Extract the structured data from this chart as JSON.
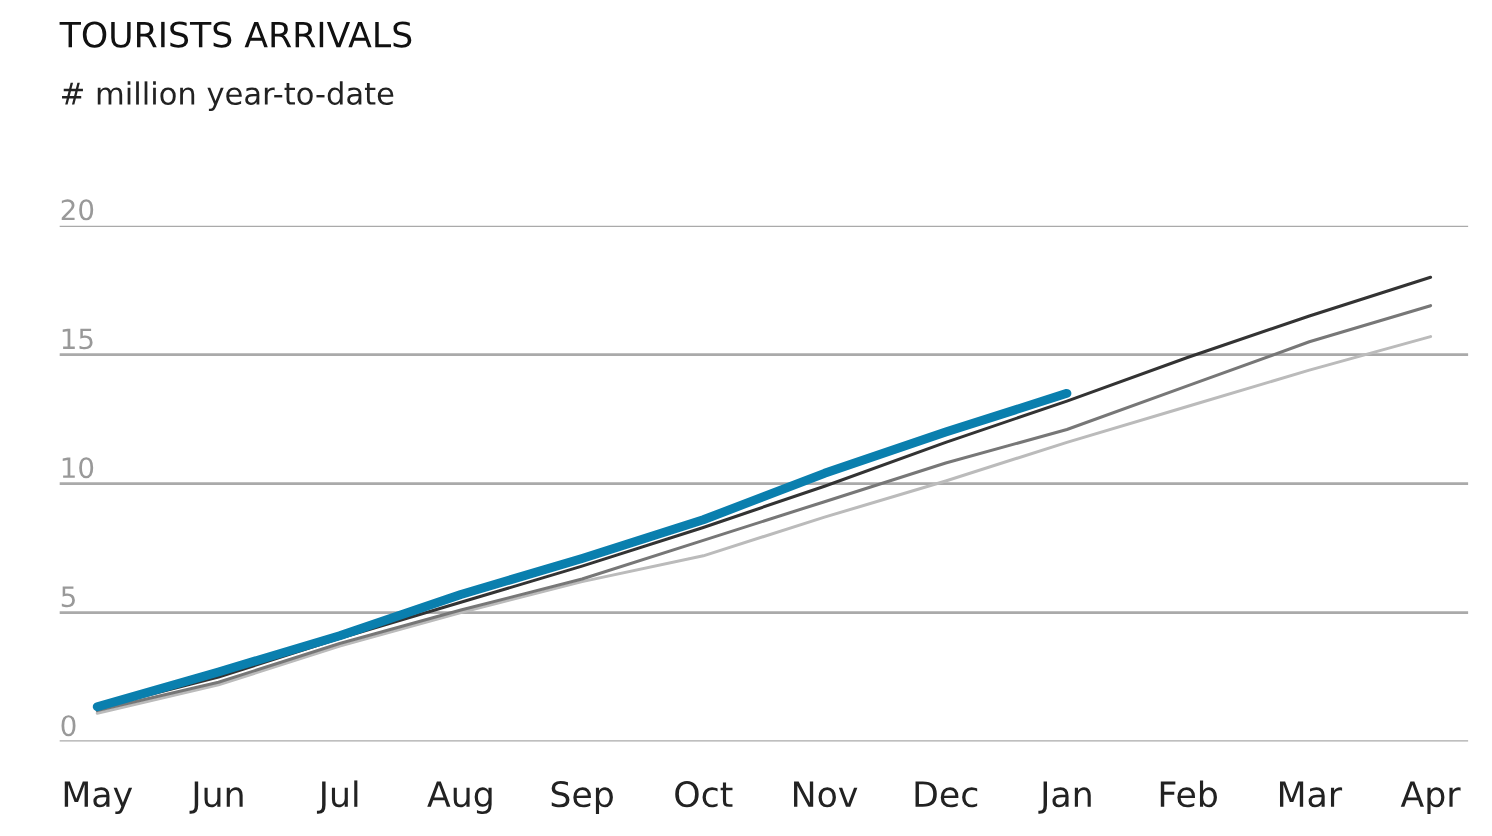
{
  "chart_data": {
    "type": "line",
    "title": "TOURISTS ARRIVALS",
    "subtitle": "# million year-to-date",
    "categories": [
      "May",
      "Jun",
      "Jul",
      "Aug",
      "Sep",
      "Oct",
      "Nov",
      "Dec",
      "Jan",
      "Feb",
      "Mar",
      "Apr"
    ],
    "series": [
      {
        "color": "#bbbbbb",
        "values": [
          1.1,
          2.2,
          3.7,
          5.0,
          6.2,
          7.2,
          8.7,
          10.1,
          11.6,
          13.0,
          14.4,
          15.7
        ]
      },
      {
        "color": "#777777",
        "values": [
          1.2,
          2.3,
          3.8,
          5.1,
          6.3,
          7.8,
          9.3,
          10.8,
          12.1,
          13.8,
          15.5,
          16.9
        ]
      },
      {
        "color": "#333333",
        "values": [
          1.3,
          2.5,
          4.0,
          5.4,
          6.8,
          8.3,
          9.9,
          11.6,
          13.2,
          14.9,
          16.5,
          18.0
        ]
      },
      {
        "color": "#0a7fae",
        "values": [
          1.35,
          2.7,
          4.1,
          5.7,
          7.1,
          8.6,
          10.4,
          12.0,
          13.5,
          null,
          null,
          null
        ]
      }
    ],
    "ylim": [
      0,
      20
    ],
    "yticks": [
      0,
      5,
      10,
      15,
      20
    ],
    "grid": "y",
    "legend": false,
    "marker": "none",
    "line_style": "solid"
  }
}
